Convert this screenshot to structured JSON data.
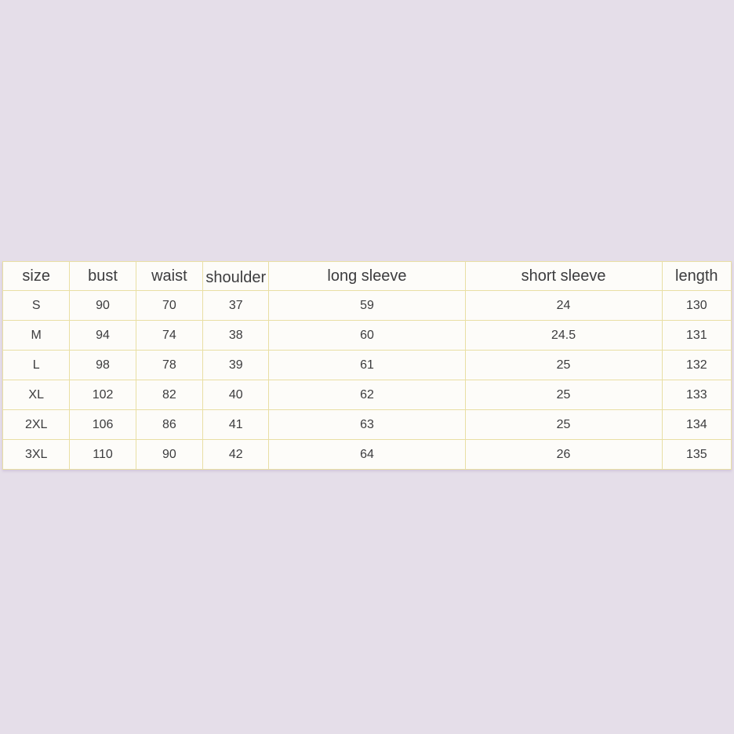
{
  "page": {
    "background_color": "#e5dee9",
    "border_color": "#e9dfa4",
    "cell_background": "#fdfcf9",
    "text_color": "#3c3c3e"
  },
  "chart_data": {
    "type": "table",
    "columns": [
      "size",
      "bust",
      "waist",
      "shoulder",
      "long sleeve",
      "short sleeve",
      "length"
    ],
    "rows": [
      [
        "S",
        "90",
        "70",
        "37",
        "59",
        "24",
        "130"
      ],
      [
        "M",
        "94",
        "74",
        "38",
        "60",
        "24.5",
        "131"
      ],
      [
        "L",
        "98",
        "78",
        "39",
        "61",
        "25",
        "132"
      ],
      [
        "XL",
        "102",
        "82",
        "40",
        "62",
        "25",
        "133"
      ],
      [
        "2XL",
        "106",
        "86",
        "41",
        "63",
        "25",
        "134"
      ],
      [
        "3XL",
        "110",
        "90",
        "42",
        "64",
        "26",
        "135"
      ]
    ],
    "layout_hints": {
      "grid": true,
      "header_row": true,
      "lowered_header_index": 3
    }
  }
}
